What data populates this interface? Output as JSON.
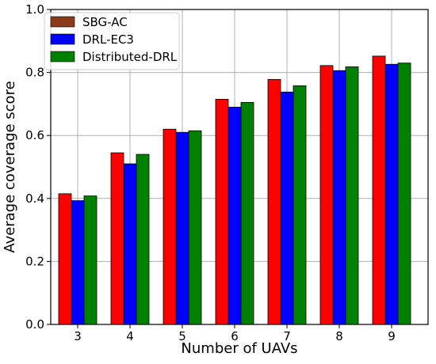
{
  "chart_data": {
    "type": "bar",
    "title": "",
    "xlabel": "Number of UAVs",
    "ylabel": "Average coverage score",
    "categories": [
      "3",
      "4",
      "5",
      "6",
      "7",
      "8",
      "9"
    ],
    "series": [
      {
        "name": "SBG-AC",
        "color": "#ff0000",
        "legend_color": "#8b3a1a",
        "values": [
          0.415,
          0.545,
          0.62,
          0.715,
          0.778,
          0.822,
          0.852
        ]
      },
      {
        "name": "DRL-EC3",
        "color": "#0000ff",
        "legend_color": "#0000ff",
        "values": [
          0.393,
          0.51,
          0.61,
          0.69,
          0.738,
          0.806,
          0.826
        ]
      },
      {
        "name": "Distributed-DRL",
        "color": "#008000",
        "legend_color": "#008000",
        "values": [
          0.408,
          0.54,
          0.615,
          0.705,
          0.758,
          0.818,
          0.83
        ]
      }
    ],
    "ylim": [
      0,
      1.0
    ],
    "yticks": [
      "0.0",
      "0.2",
      "0.4",
      "0.6",
      "0.8",
      "1.0"
    ],
    "grid": true,
    "legend_position": "top-left"
  }
}
